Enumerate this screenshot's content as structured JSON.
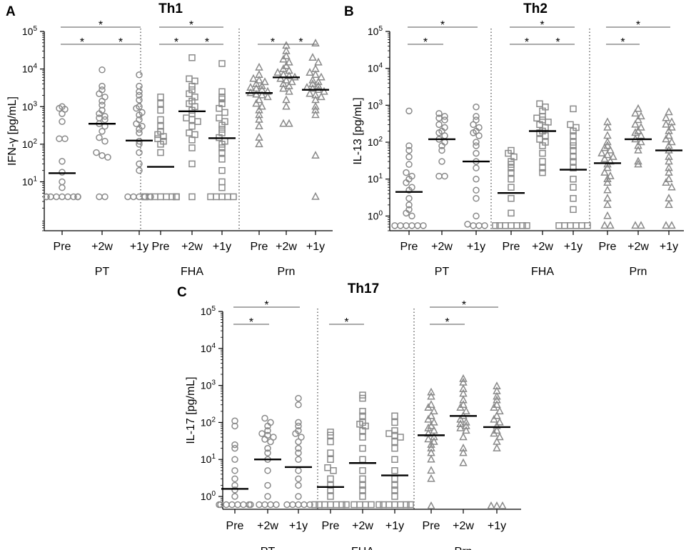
{
  "figure": {
    "panel_letters": [
      "A",
      "B",
      "C"
    ]
  },
  "colors": {
    "marker": "#8a8a8a",
    "median": "#000000",
    "axis": "#000000",
    "separator": "#333333",
    "significance": "#555555"
  },
  "chart_data": [
    {
      "id": "A",
      "type": "scatter",
      "title": "Th1",
      "ylabel": "IFN-γ [pg/mL]",
      "yscale": "log",
      "ylim": [
        0.5,
        100000
      ],
      "yticks": [
        {
          "base": "10",
          "exp": "1",
          "value": 10
        },
        {
          "base": "10",
          "exp": "2",
          "value": 100
        },
        {
          "base": "10",
          "exp": "3",
          "value": 1000
        },
        {
          "base": "10",
          "exp": "4",
          "value": 10000
        },
        {
          "base": "10",
          "exp": "5",
          "value": 100000
        }
      ],
      "timepoints": [
        "Pre",
        "+2w",
        "+1y"
      ],
      "groups": [
        {
          "antigen": "PT",
          "marker": "circle",
          "medians": [
            17,
            350,
            125
          ],
          "points": [
            [
              1000,
              900,
              850,
              650,
              400,
              140,
              140,
              35,
              18,
              10,
              7,
              4,
              4,
              4,
              4,
              4,
              4,
              4,
              4,
              4,
              4,
              4
            ],
            [
              9500,
              3500,
              2800,
              2200,
              1800,
              1400,
              1100,
              800,
              650,
              550,
              500,
              450,
              350,
              300,
              220,
              150,
              120,
              60,
              50,
              45,
              4,
              4
            ],
            [
              7000,
              3500,
              2500,
              2000,
              1500,
              1000,
              900,
              700,
              600,
              450,
              350,
              300,
              250,
              200,
              120,
              100,
              60,
              30,
              20,
              4,
              4,
              4,
              4,
              4
            ]
          ],
          "significance": [
            {
              "pair": [
                0,
                1
              ],
              "label": "*"
            },
            {
              "pair": [
                1,
                2
              ],
              "label": "*"
            },
            {
              "pair": [
                0,
                2
              ],
              "label": "*"
            }
          ]
        },
        {
          "antigen": "FHA",
          "marker": "square",
          "medians": [
            25,
            750,
            145
          ],
          "points": [
            [
              1800,
              1200,
              800,
              450,
              300,
              220,
              180,
              160,
              140,
              120,
              100,
              60,
              4,
              4,
              4,
              4,
              4,
              4,
              4,
              4,
              4
            ],
            [
              20000,
              5500,
              4800,
              3500,
              2800,
              2200,
              1800,
              1400,
              1200,
              1000,
              800,
              650,
              500,
              450,
              400,
              300,
              200,
              180,
              130,
              80,
              30,
              4
            ],
            [
              14000,
              2500,
              1800,
              1600,
              1200,
              900,
              700,
              500,
              400,
              320,
              250,
              200,
              150,
              120,
              100,
              80,
              60,
              40,
              20,
              10,
              7,
              4,
              4,
              4,
              4,
              4
            ]
          ],
          "significance": [
            {
              "pair": [
                0,
                1
              ],
              "label": "*"
            },
            {
              "pair": [
                1,
                2
              ],
              "label": "*"
            },
            {
              "pair": [
                0,
                2
              ],
              "label": "*"
            }
          ]
        },
        {
          "antigen": "Prn",
          "marker": "triangle",
          "medians": [
            2300,
            6000,
            2800
          ],
          "points": [
            [
              11000,
              7000,
              5500,
              5000,
              4500,
              4000,
              3500,
              3200,
              3000,
              2800,
              2500,
              2300,
              2100,
              2000,
              1800,
              1500,
              1200,
              1000,
              800,
              600,
              450,
              300,
              150,
              100
            ],
            [
              42000,
              30000,
              22000,
              18000,
              15000,
              12000,
              10000,
              9000,
              8000,
              7000,
              6500,
              6000,
              5500,
              5000,
              4500,
              4000,
              3500,
              3000,
              2500,
              1500,
              1000,
              350,
              350
            ],
            [
              48000,
              20000,
              15000,
              10000,
              8000,
              7000,
              6000,
              5000,
              4500,
              4000,
              3500,
              3200,
              3000,
              2800,
              2500,
              2200,
              2000,
              1800,
              1500,
              1000,
              800,
              600,
              50,
              4
            ]
          ],
          "significance": [
            {
              "pair": [
                0,
                1
              ],
              "label": "*"
            },
            {
              "pair": [
                1,
                2
              ],
              "label": "*"
            }
          ]
        }
      ]
    },
    {
      "id": "B",
      "type": "scatter",
      "title": "Th2",
      "ylabel": "IL-13 [pg/mL]",
      "yscale": "log",
      "ylim": [
        0.4,
        100000
      ],
      "yticks": [
        {
          "base": "10",
          "exp": "0",
          "value": 1
        },
        {
          "base": "10",
          "exp": "1",
          "value": 10
        },
        {
          "base": "10",
          "exp": "2",
          "value": 100
        },
        {
          "base": "10",
          "exp": "3",
          "value": 1000
        },
        {
          "base": "10",
          "exp": "4",
          "value": 10000
        },
        {
          "base": "10",
          "exp": "5",
          "value": 100000
        }
      ],
      "timepoints": [
        "Pre",
        "+2w",
        "+1y"
      ],
      "groups": [
        {
          "antigen": "PT",
          "marker": "circle",
          "medians": [
            4.5,
            120,
            30
          ],
          "points": [
            [
              700,
              80,
              60,
              40,
              25,
              15,
              12,
              10,
              8,
              6,
              5,
              3,
              2,
              1.5,
              1.2,
              1,
              0.55,
              0.55,
              0.55,
              0.55,
              0.55,
              0.55
            ],
            [
              600,
              500,
              450,
              400,
              300,
              250,
              200,
              180,
              150,
              120,
              100,
              80,
              60,
              30,
              12,
              12
            ],
            [
              900,
              500,
              400,
              300,
              250,
              200,
              180,
              150,
              100,
              80,
              50,
              30,
              20,
              10,
              5,
              3,
              1,
              0.6,
              0.55,
              0.55,
              0.55
            ]
          ],
          "significance": [
            {
              "pair": [
                0,
                1
              ],
              "label": "*"
            },
            {
              "pair": [
                0,
                2
              ],
              "label": "*"
            }
          ]
        },
        {
          "antigen": "FHA",
          "marker": "square",
          "medians": [
            4.2,
            200,
            18
          ],
          "points": [
            [
              60,
              50,
              40,
              30,
              25,
              20,
              15,
              10,
              6,
              3,
              1.2,
              0.55,
              0.55,
              0.55,
              0.55,
              0.55,
              0.55,
              0.55
            ],
            [
              1100,
              900,
              700,
              500,
              450,
              400,
              350,
              300,
              250,
              200,
              180,
              150,
              120,
              100,
              80,
              50,
              30,
              20,
              15
            ],
            [
              800,
              300,
              250,
              200,
              150,
              100,
              80,
              60,
              40,
              30,
              20,
              10,
              6,
              3,
              1.5,
              0.55,
              0.55,
              0.55,
              0.55,
              0.55,
              0.55
            ]
          ],
          "significance": [
            {
              "pair": [
                0,
                1
              ],
              "label": "*"
            },
            {
              "pair": [
                1,
                2
              ],
              "label": "*"
            },
            {
              "pair": [
                0,
                2
              ],
              "label": "*"
            }
          ]
        },
        {
          "antigen": "Prn",
          "marker": "triangle",
          "medians": [
            27,
            120,
            60
          ],
          "points": [
            [
              350,
              250,
              150,
              100,
              80,
              70,
              60,
              50,
              45,
              40,
              35,
              30,
              25,
              20,
              15,
              12,
              10,
              8,
              5,
              3,
              2,
              1,
              0.55,
              0.55
            ],
            [
              800,
              600,
              500,
              400,
              300,
              250,
              200,
              180,
              150,
              120,
              100,
              80,
              60,
              30,
              25,
              0.55,
              0.55
            ],
            [
              650,
              450,
              350,
              300,
              250,
              200,
              150,
              120,
              100,
              80,
              60,
              40,
              30,
              20,
              15,
              10,
              8,
              6,
              3,
              2,
              0.55,
              0.55
            ]
          ],
          "significance": [
            {
              "pair": [
                0,
                1
              ],
              "label": "*"
            },
            {
              "pair": [
                0,
                2
              ],
              "label": "*"
            }
          ]
        }
      ]
    },
    {
      "id": "C",
      "type": "scatter",
      "title": "Th17",
      "ylabel": "IL-17 [pg/mL]",
      "yscale": "log",
      "ylim": [
        0.45,
        100000
      ],
      "yticks": [
        {
          "base": "10",
          "exp": "0",
          "value": 1
        },
        {
          "base": "10",
          "exp": "1",
          "value": 10
        },
        {
          "base": "10",
          "exp": "2",
          "value": 100
        },
        {
          "base": "10",
          "exp": "3",
          "value": 1000
        },
        {
          "base": "10",
          "exp": "4",
          "value": 10000
        },
        {
          "base": "10",
          "exp": "5",
          "value": 100000
        }
      ],
      "timepoints": [
        "Pre",
        "+2w",
        "+1y"
      ],
      "groups": [
        {
          "antigen": "PT",
          "marker": "circle",
          "medians": [
            1.6,
            10,
            6.2
          ],
          "points": [
            [
              110,
              80,
              25,
              20,
              10,
              5,
              3,
              2,
              1.5,
              1,
              0.6,
              0.6,
              0.6,
              0.6,
              0.6,
              0.6,
              0.6,
              0.6
            ],
            [
              130,
              100,
              80,
              60,
              50,
              45,
              40,
              35,
              30,
              20,
              15,
              10,
              5,
              2,
              1,
              0.6,
              0.6,
              0.6,
              0.6
            ],
            [
              450,
              300,
              100,
              80,
              60,
              50,
              40,
              30,
              20,
              15,
              10,
              5,
              3,
              2,
              1,
              0.6,
              0.6,
              0.6,
              0.6,
              0.6
            ]
          ],
          "significance": [
            {
              "pair": [
                0,
                1
              ],
              "label": "*"
            },
            {
              "pair": [
                0,
                2
              ],
              "label": "*"
            }
          ]
        },
        {
          "antigen": "FHA",
          "marker": "square",
          "medians": [
            1.8,
            8,
            3.7
          ],
          "points": [
            [
              55,
              45,
              30,
              15,
              10,
              6,
              5,
              3,
              2,
              1.5,
              1,
              0.6,
              0.6,
              0.6,
              0.6,
              0.6,
              0.6,
              0.6
            ],
            [
              550,
              450,
              200,
              150,
              100,
              90,
              80,
              60,
              40,
              20,
              10,
              5,
              3,
              2,
              1.5,
              1,
              0.6,
              0.6,
              0.6,
              0.6
            ],
            [
              150,
              100,
              60,
              50,
              45,
              40,
              30,
              20,
              10,
              5,
              3,
              2,
              1.5,
              1,
              0.6,
              0.6,
              0.6,
              0.6,
              0.6,
              0.6,
              0.6
            ]
          ],
          "significance": [
            {
              "pair": [
                0,
                1
              ],
              "label": "*"
            }
          ]
        },
        {
          "antigen": "Prn",
          "marker": "triangle",
          "medians": [
            45,
            150,
            75
          ],
          "points": [
            [
              650,
              500,
              300,
              250,
              200,
              150,
              120,
              100,
              80,
              70,
              60,
              50,
              40,
              35,
              30,
              25,
              20,
              15,
              10,
              5,
              3,
              0.55
            ],
            [
              1500,
              1200,
              800,
              600,
              400,
              300,
              250,
              200,
              150,
              120,
              100,
              90,
              80,
              70,
              60,
              40,
              20,
              15,
              8
            ],
            [
              950,
              700,
              500,
              400,
              300,
              250,
              200,
              150,
              120,
              100,
              80,
              60,
              50,
              40,
              30,
              20,
              0.55,
              0.55,
              0.55
            ]
          ],
          "significance": [
            {
              "pair": [
                0,
                1
              ],
              "label": "*"
            },
            {
              "pair": [
                0,
                2
              ],
              "label": "*"
            }
          ]
        }
      ]
    }
  ]
}
